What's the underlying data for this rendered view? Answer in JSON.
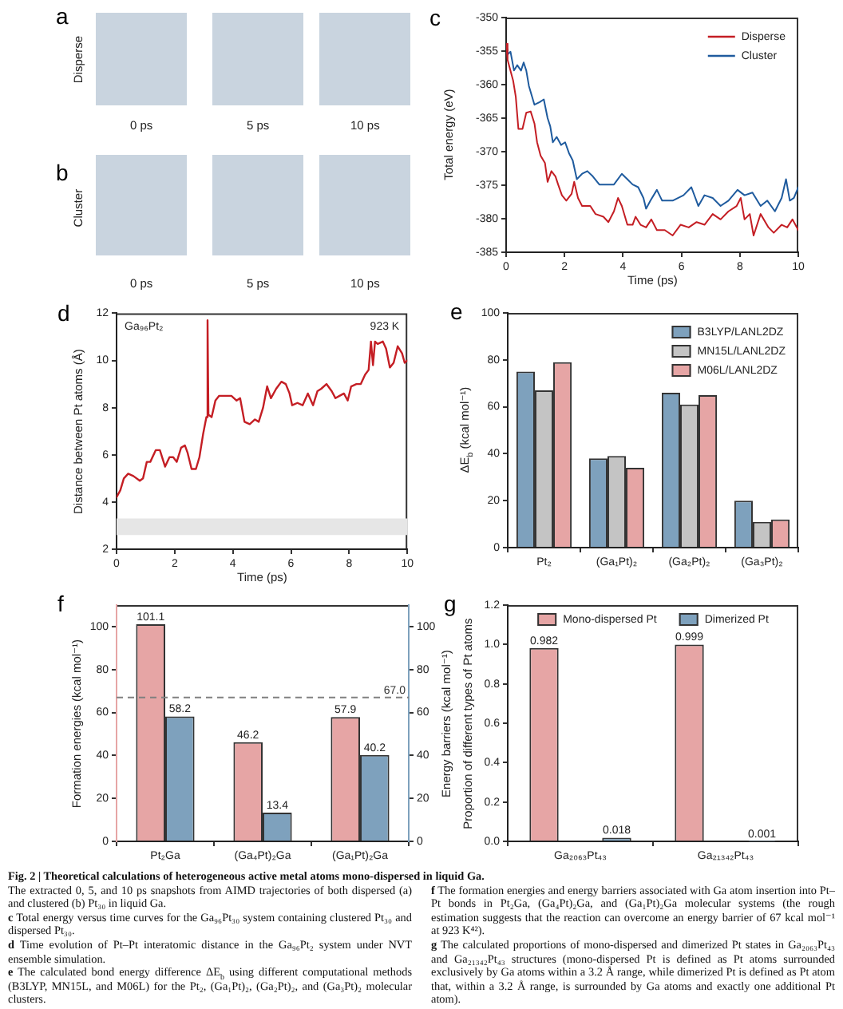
{
  "chart_data": [
    {
      "type": "other",
      "title": "a",
      "ylabel": "Disperse",
      "annotations": [
        "0 ps",
        "5 ps",
        "10 ps"
      ]
    },
    {
      "type": "other",
      "title": "b",
      "ylabel": "Cluster",
      "annotations": [
        "0 ps",
        "5 ps",
        "10 ps"
      ]
    },
    {
      "type": "line",
      "title": "c",
      "xlabel": "Time (ps)",
      "ylabel": "Total energy (eV)",
      "xlim": [
        0,
        10
      ],
      "xticks": [
        0,
        2,
        4,
        6,
        8,
        10
      ],
      "ylim": [
        -385,
        -350
      ],
      "yticks": [
        -385,
        -380,
        -375,
        -370,
        -365,
        -360,
        -355,
        -350
      ],
      "legend": "top right",
      "marker": "none",
      "series": [
        {
          "name": "Disperse",
          "color": "#c41e24",
          "x": [
            0,
            0.05,
            0.24,
            0.33,
            0.42,
            0.56,
            0.69,
            0.84,
            0.97,
            1.06,
            1.18,
            1.33,
            1.42,
            1.55,
            1.69,
            1.78,
            1.91,
            2.06,
            2.24,
            2.33,
            2.46,
            2.6,
            2.88,
            3.06,
            3.33,
            3.5,
            3.69,
            3.83,
            3.96,
            4.15,
            4.33,
            4.43,
            4.6,
            4.79,
            4.97,
            5.16,
            5.43,
            5.7,
            5.97,
            6.25,
            6.52,
            6.79,
            7.07,
            7.34,
            7.61,
            7.89,
            8.03,
            8.16,
            8.34,
            8.47,
            8.71,
            8.98,
            9.16,
            9.43,
            9.62,
            9.8,
            10
          ],
          "values": [
            -353.9,
            -356.3,
            -359.4,
            -361.8,
            -366.6,
            -366.6,
            -364.2,
            -364,
            -365.8,
            -368.6,
            -370.6,
            -371.7,
            -374.5,
            -372.9,
            -373.7,
            -374.9,
            -376.5,
            -377.3,
            -376.3,
            -374.5,
            -376.9,
            -378.1,
            -378.1,
            -379.3,
            -379.7,
            -380.5,
            -378.9,
            -376.9,
            -378.1,
            -380.9,
            -380.9,
            -379.7,
            -380.9,
            -381.3,
            -380.1,
            -381.7,
            -381.7,
            -382.5,
            -380.9,
            -381.3,
            -380.5,
            -380.9,
            -379.3,
            -380.1,
            -378.9,
            -378.1,
            -376.9,
            -380.1,
            -379.3,
            -382.5,
            -379.3,
            -381.3,
            -382.1,
            -380.9,
            -381.3,
            -380.1,
            -381.7
          ]
        },
        {
          "name": "Cluster",
          "color": "#1f5b9e",
          "x": [
            0,
            0.05,
            0.15,
            0.27,
            0.38,
            0.51,
            0.6,
            0.69,
            0.78,
            0.97,
            1.15,
            1.29,
            1.42,
            1.51,
            1.6,
            1.73,
            1.88,
            2.02,
            2.15,
            2.28,
            2.42,
            2.6,
            2.78,
            2.97,
            3.19,
            3.42,
            3.69,
            3.96,
            4.15,
            4.33,
            4.52,
            4.7,
            4.79,
            4.94,
            5.16,
            5.34,
            5.7,
            6.07,
            6.34,
            6.58,
            6.79,
            7.07,
            7.34,
            7.61,
            7.92,
            8.16,
            8.43,
            8.71,
            8.94,
            9.2,
            9.43,
            9.58,
            9.71,
            9.85,
            10
          ],
          "values": [
            -354.7,
            -355.5,
            -355.1,
            -357.9,
            -357.1,
            -357.9,
            -356.7,
            -357.9,
            -360.2,
            -363,
            -362.6,
            -362.2,
            -365,
            -366.2,
            -368.6,
            -367.8,
            -369,
            -368.6,
            -370.2,
            -371.3,
            -374.1,
            -373.3,
            -372.9,
            -373.7,
            -374.9,
            -374.9,
            -374.9,
            -373.3,
            -374.1,
            -374.9,
            -375.3,
            -376.9,
            -378.5,
            -377.3,
            -375.7,
            -377.3,
            -377.3,
            -376.5,
            -375.3,
            -378.1,
            -376.5,
            -376.9,
            -378.1,
            -377.3,
            -375.7,
            -376.5,
            -376.1,
            -378.1,
            -377.3,
            -378.9,
            -376.9,
            -374.1,
            -377.3,
            -376.9,
            -375.3
          ]
        }
      ]
    },
    {
      "type": "line",
      "title": "d",
      "xlabel": "Time (ps)",
      "ylabel": "Distance between Pt atoms (Å)",
      "xlim": [
        0,
        10
      ],
      "xticks": [
        0,
        2,
        4,
        6,
        8,
        10
      ],
      "ylim": [
        2,
        12
      ],
      "yticks": [
        2,
        4,
        6,
        8,
        10,
        12
      ],
      "marker": "none",
      "bands": [
        {
          "axis": "y",
          "from": 2.6,
          "to": 3.3,
          "color": "#e6e6e6"
        }
      ],
      "annotations": [
        "Ga₉₆Pt₂",
        "923 K"
      ],
      "series": [
        {
          "color": "#c41e24",
          "x": [
            0,
            0.13,
            0.25,
            0.4,
            0.58,
            0.8,
            0.91,
            1.04,
            1.16,
            1.35,
            1.49,
            1.67,
            1.82,
            1.95,
            2.07,
            2.22,
            2.35,
            2.44,
            2.58,
            2.73,
            2.85,
            2.98,
            3.09,
            3.13,
            3.16,
            3.27,
            3.4,
            3.53,
            3.76,
            3.95,
            4.13,
            4.25,
            4.4,
            4.58,
            4.76,
            4.89,
            5.04,
            5.18,
            5.31,
            5.49,
            5.67,
            5.82,
            5.95,
            6.04,
            6.22,
            6.4,
            6.58,
            6.76,
            6.91,
            7.04,
            7.22,
            7.4,
            7.53,
            7.67,
            7.82,
            7.95,
            8.07,
            8.25,
            8.4,
            8.55,
            8.67,
            8.75,
            8.82,
            8.89,
            8.98,
            9.16,
            9.27,
            9.4,
            9.53,
            9.67,
            9.82,
            9.91,
            10
          ],
          "values": [
            4.2,
            4.5,
            5,
            5.2,
            5.1,
            4.9,
            5,
            5.7,
            5.7,
            6.2,
            6.2,
            5.5,
            5.9,
            5.9,
            5.7,
            6.3,
            6.4,
            6.1,
            5.4,
            5.4,
            5.9,
            6.9,
            7.6,
            11.7,
            7.7,
            7.6,
            8.3,
            8.5,
            8.5,
            8.5,
            8.3,
            8.4,
            7.4,
            7.3,
            7.5,
            7.4,
            8,
            8.9,
            8.4,
            8.8,
            9.1,
            9,
            8.6,
            8.1,
            8.2,
            8.1,
            8.6,
            8.1,
            8.7,
            8.8,
            9,
            8.7,
            8.4,
            8.5,
            8.6,
            8.3,
            8.9,
            9,
            9,
            9.4,
            9.6,
            10.8,
            9.8,
            10.8,
            10.7,
            10.8,
            10.5,
            9.7,
            9.9,
            10.6,
            10.3,
            9.9,
            10
          ]
        }
      ]
    },
    {
      "type": "bar",
      "title": "e",
      "ylabel": "ΔE$_{b}$ (kcal mol⁻¹)",
      "categories": [
        "Pt₂",
        "(Ga₁Pt)₂",
        "(Ga₂Pt)₂",
        "(Ga₃Pt)₂"
      ],
      "ylim": [
        0,
        100
      ],
      "yticks": [
        0,
        20,
        40,
        60,
        80,
        100
      ],
      "legend": "top right",
      "series": [
        {
          "name": "B3LYP/LANL2DZ",
          "color": "#7ea1bd",
          "values": [
            75,
            38,
            66,
            20
          ]
        },
        {
          "name": "MN15L/LANL2DZ",
          "color": "#c4c4c4",
          "values": [
            67,
            39,
            61,
            11
          ]
        },
        {
          "name": "M06L/LANL2DZ",
          "color": "#e6a5a5",
          "values": [
            79,
            34,
            65,
            12
          ]
        }
      ]
    },
    {
      "type": "bar",
      "title": "f",
      "ylabel": "Formation energies (kcal mol⁻¹)",
      "y2label": "Energy barriers (kcal mol⁻¹)",
      "categories": [
        "Pt₂Ga",
        "(Ga₄Pt)₂Ga",
        "(Ga₁Pt)₂Ga"
      ],
      "ylim": [
        0,
        110
      ],
      "yticks": [
        0,
        20,
        40,
        60,
        80,
        100
      ],
      "y2lim": [
        0,
        110
      ],
      "y2ticks": [
        0,
        20,
        40,
        60,
        80,
        100
      ],
      "data_labels": true,
      "ref_lines": [
        {
          "axis": "y2",
          "value": 67,
          "label": "67.0",
          "color": "#808080",
          "line_style": "dashed"
        }
      ],
      "series": [
        {
          "color": "#e6a5a5",
          "values": [
            101.1,
            46.2,
            57.9
          ]
        },
        {
          "color": "#7ea1bd",
          "axis": "y2",
          "values": [
            58.2,
            13.4,
            40.2
          ]
        }
      ]
    },
    {
      "type": "bar",
      "title": "g",
      "ylabel": "Proportion of different types of Pt atoms",
      "categories": [
        "Ga₂₀₆₃Pt₄₃",
        "Ga₂₁₃₄₂Pt₄₃"
      ],
      "ylim": [
        0,
        1.2
      ],
      "yticks": [
        {
          "value": 0,
          "label": "0.0"
        },
        0.2,
        0.4,
        0.6,
        0.8,
        {
          "value": 1,
          "label": "1.0"
        },
        1.2
      ],
      "legend": "top",
      "data_labels": true,
      "series": [
        {
          "name": "Mono-dispersed Pt",
          "color": "#e6a5a5",
          "values": [
            0.982,
            0.999
          ]
        },
        {
          "name": "Dimerized Pt",
          "color": "#7ea1bd",
          "values": [
            0.018,
            0.001
          ]
        }
      ]
    },
    {
      "type": "other",
      "title": "Fig. 2 | Theoretical calculations of heterogeneous active metal atoms mono-dispersed in liquid Ga.",
      "annotations": [
        "The extracted 0, 5, and 10 ps snapshots from AIMD trajectories of both dispersed (a) and clustered (b) Pt₃₀ in liquid Ga.",
        "c Total energy versus time curves for the Ga₉₆Pt₃₀ system containing clustered Pt₃₀ and dispersed Pt₃₀.",
        "d Time evolution of Pt–Pt interatomic distance in the Ga₉₆Pt₂ system under NVT ensemble simulation.",
        "e The calculated bond energy difference ΔE$_{b}$ using different computational methods (B3LYP, MN15L, and M06L) for the Pt₂, (Ga₁Pt)₂, (Ga₂Pt)₂, and (Ga₃Pt)₂ molecular clusters.",
        "f The formation energies and energy barriers associated with Ga atom insertion into Pt–Pt bonds in Pt₂Ga, (Ga₄Pt)₂Ga, and (Ga₁Pt)₂Ga molecular systems (the rough estimation suggests that the reaction can overcome an energy barrier of 67 kcal mol⁻¹ at 923 K⁴²).",
        "g The calculated proportions of mono-dispersed and dimerized Pt states in Ga₂₀₆₃Pt₄₃ and Ga₂₁₃₄₂Pt₄₃ structures (mono-dispersed Pt is defined as Pt atoms surrounded exclusively by Ga atoms within a 3.2 Å range, while dimerized Pt is defined as Pt atom that, within a 3.2 Å range, is surrounded by Ga atoms and exactly one additional Pt atom)."
      ]
    }
  ]
}
